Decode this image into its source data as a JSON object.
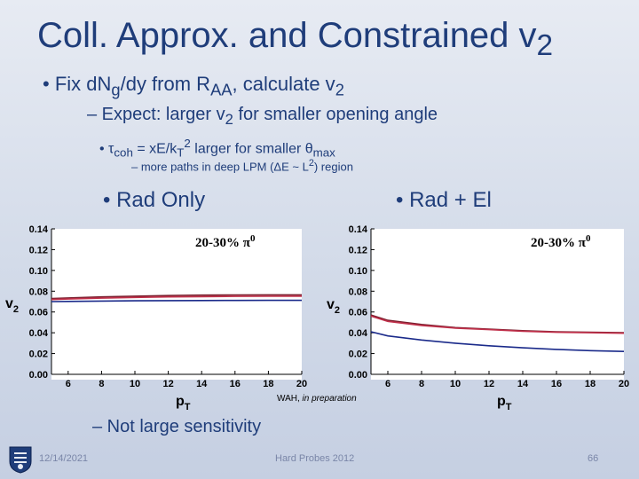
{
  "slide": {
    "title_main": "Coll. Approx. and Constrained v",
    "title_sub": "2",
    "bullet1_a": "Fix dN",
    "bullet1_sub_g": "g",
    "bullet1_b": "/dy from R",
    "bullet1_sub_aa": "AA",
    "bullet1_c": ", calculate v",
    "bullet1_sub_2": "2",
    "bullet2_a": "– Expect: larger v",
    "bullet2_sub": "2",
    "bullet2_b": " for smaller opening angle",
    "bullet3_tau": "τ",
    "bullet3_coh": "coh",
    "bullet3_a": " = xE/k",
    "bullet3_T": "T",
    "bullet3_sq": "2",
    "bullet3_b": " larger for smaller ",
    "bullet3_theta": "θ",
    "bullet3_max": "max",
    "bullet4_a": "– more paths in deep LPM (ΔE ~ L",
    "bullet4_sq": "2",
    "bullet4_b": ") region",
    "label_left": "• Rad Only",
    "label_right": "• Rad + El",
    "bullet5": "– Not large sensitivity",
    "footer_date": "12/14/2021",
    "footer_conf": "Hard Probes 2012",
    "footer_page": "66",
    "note": "WAH, in preparation"
  },
  "colors": {
    "title": "#1f3d7a",
    "curve_dark_red": "#7a1f2e",
    "curve_red": "#c0304a",
    "curve_blue": "#1a2a8a"
  },
  "chart_data": [
    {
      "type": "line",
      "panel_label": "20-30% π0",
      "xlabel": "pT",
      "ylabel": "v2",
      "xlim": [
        5,
        20
      ],
      "ylim": [
        0,
        0.14
      ],
      "x_ticks": [
        6,
        8,
        10,
        12,
        14,
        16,
        18,
        20
      ],
      "y_ticks": [
        "0.00",
        "0.02",
        "0.04",
        "0.06",
        "0.08",
        "0.10",
        "0.12",
        "0.14"
      ],
      "x": [
        5,
        6,
        8,
        10,
        12,
        14,
        16,
        18,
        20
      ],
      "series": [
        {
          "color": "#7a1f2e",
          "values": [
            0.073,
            0.0735,
            0.0745,
            0.0752,
            0.0758,
            0.0762,
            0.0764,
            0.0765,
            0.0765
          ]
        },
        {
          "color": "#c0304a",
          "values": [
            0.072,
            0.0725,
            0.0733,
            0.074,
            0.0745,
            0.0748,
            0.075,
            0.0751,
            0.0752
          ]
        },
        {
          "color": "#1a2a8a",
          "values": [
            0.07,
            0.0702,
            0.0705,
            0.0708,
            0.0709,
            0.071,
            0.0711,
            0.0712,
            0.0712
          ]
        }
      ]
    },
    {
      "type": "line",
      "panel_label": "20-30% π0",
      "xlabel": "pT",
      "ylabel": "v2",
      "xlim": [
        5,
        20
      ],
      "ylim": [
        0,
        0.14
      ],
      "x_ticks": [
        6,
        8,
        10,
        12,
        14,
        16,
        18,
        20
      ],
      "y_ticks": [
        "0.00",
        "0.02",
        "0.04",
        "0.06",
        "0.08",
        "0.10",
        "0.12",
        "0.14"
      ],
      "x": [
        5,
        6,
        8,
        10,
        12,
        14,
        16,
        18,
        20
      ],
      "series": [
        {
          "color": "#7a1f2e",
          "values": [
            0.057,
            0.052,
            0.048,
            0.045,
            0.0435,
            0.042,
            0.041,
            0.0405,
            0.04
          ]
        },
        {
          "color": "#c0304a",
          "values": [
            0.056,
            0.051,
            0.047,
            0.0445,
            0.043,
            0.0415,
            0.0405,
            0.04,
            0.0395
          ]
        },
        {
          "color": "#1a2a8a",
          "values": [
            0.041,
            0.037,
            0.033,
            0.03,
            0.0275,
            0.0255,
            0.024,
            0.0228,
            0.022
          ]
        }
      ]
    }
  ]
}
